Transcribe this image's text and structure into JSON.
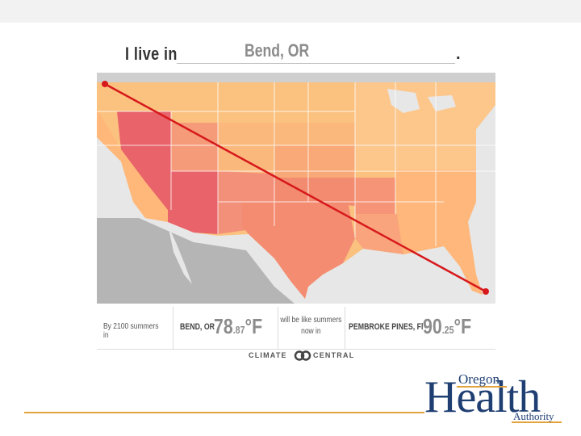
{
  "header": {
    "prefix": "I live in",
    "city": "Bend, OR",
    "suffix": "."
  },
  "comparison": {
    "lead": "By 2100 summers in",
    "origin_city": "BEND, OR",
    "origin_temp_int": "78",
    "origin_temp_dec": ".87",
    "origin_unit": "°F",
    "middle": "will be like summers now in",
    "dest_city": "PEMBROKE PINES, Fl",
    "dest_temp_int": "90",
    "dest_temp_dec": ".25",
    "dest_unit": "°F"
  },
  "credit": {
    "left": "CLIMATE",
    "right": "CENTRAL"
  },
  "logo": {
    "top": "Oregon",
    "main": "Health",
    "bottom": "Authority"
  },
  "colors": {
    "accent_line": "#e3a33c",
    "route": "#d7191c",
    "brand": "#1f3f73"
  }
}
